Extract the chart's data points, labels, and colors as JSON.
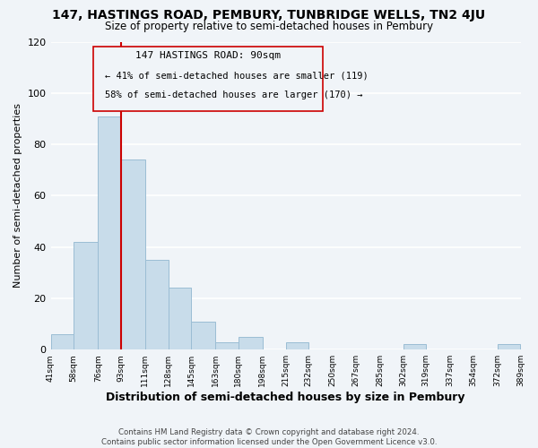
{
  "title": "147, HASTINGS ROAD, PEMBURY, TUNBRIDGE WELLS, TN2 4JU",
  "subtitle": "Size of property relative to semi-detached houses in Pembury",
  "xlabel": "Distribution of semi-detached houses by size in Pembury",
  "ylabel": "Number of semi-detached properties",
  "bar_edges": [
    41,
    58,
    76,
    93,
    111,
    128,
    145,
    163,
    180,
    198,
    215,
    232,
    250,
    267,
    285,
    302,
    319,
    337,
    354,
    372,
    389
  ],
  "bar_heights": [
    6,
    42,
    91,
    74,
    35,
    24,
    11,
    3,
    5,
    0,
    3,
    0,
    0,
    0,
    0,
    2,
    0,
    0,
    0,
    2
  ],
  "bar_color": "#c8dcea",
  "bar_edge_color": "#9bbdd4",
  "ref_line_x": 93,
  "ref_line_color": "#cc0000",
  "ylim": [
    0,
    120
  ],
  "yticks": [
    0,
    20,
    40,
    60,
    80,
    100,
    120
  ],
  "annotation_title": "147 HASTINGS ROAD: 90sqm",
  "annotation_line1": "← 41% of semi-detached houses are smaller (119)",
  "annotation_line2": "58% of semi-detached houses are larger (170) →",
  "footer_line1": "Contains HM Land Registry data © Crown copyright and database right 2024.",
  "footer_line2": "Contains public sector information licensed under the Open Government Licence v3.0.",
  "background_color": "#f0f4f8",
  "grid_color": "#ffffff",
  "tick_labels": [
    "41sqm",
    "58sqm",
    "76sqm",
    "93sqm",
    "111sqm",
    "128sqm",
    "145sqm",
    "163sqm",
    "180sqm",
    "198sqm",
    "215sqm",
    "232sqm",
    "250sqm",
    "267sqm",
    "285sqm",
    "302sqm",
    "319sqm",
    "337sqm",
    "354sqm",
    "372sqm",
    "389sqm"
  ]
}
